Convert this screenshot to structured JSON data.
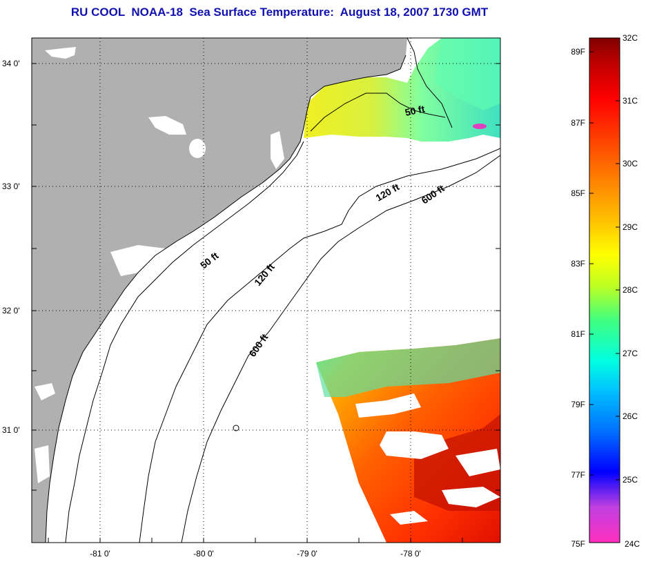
{
  "title": "RU COOL  NOAA-18  Sea Surface Temperature:  August 18, 2007 1730 GMT",
  "map": {
    "latitude_labels": [
      "34 0'",
      "33 0'",
      "32 0'",
      "31 0'"
    ],
    "longitude_labels": [
      "-81 0'",
      "-80 0'",
      "-79 0'",
      "-78 0'"
    ],
    "depth_contours": [
      "50 ft",
      "120 ft",
      "600 ft"
    ],
    "depth_labels": [
      "50 ft",
      "120 ft",
      "600 ft",
      "50 ft",
      "120 ft",
      "600 ft"
    ],
    "land_color": "#b0b0b0",
    "cloud_color": "#ffffff"
  },
  "colorbar": {
    "fahrenheit_labels": [
      "89F",
      "87F",
      "85F",
      "83F",
      "81F",
      "79F",
      "77F",
      "75F"
    ],
    "celsius_labels": [
      "32C",
      "31C",
      "30C",
      "29C",
      "28C",
      "27C",
      "26C",
      "25C",
      "24C"
    ],
    "colors": [
      "#ff30c0",
      "#c040e0",
      "#0000ff",
      "#0070ff",
      "#00c0ff",
      "#00ffe0",
      "#40ff80",
      "#c0ff20",
      "#ffff00",
      "#ffc000",
      "#ff8000",
      "#ff4000",
      "#ff0000",
      "#c00000",
      "#800000"
    ]
  }
}
